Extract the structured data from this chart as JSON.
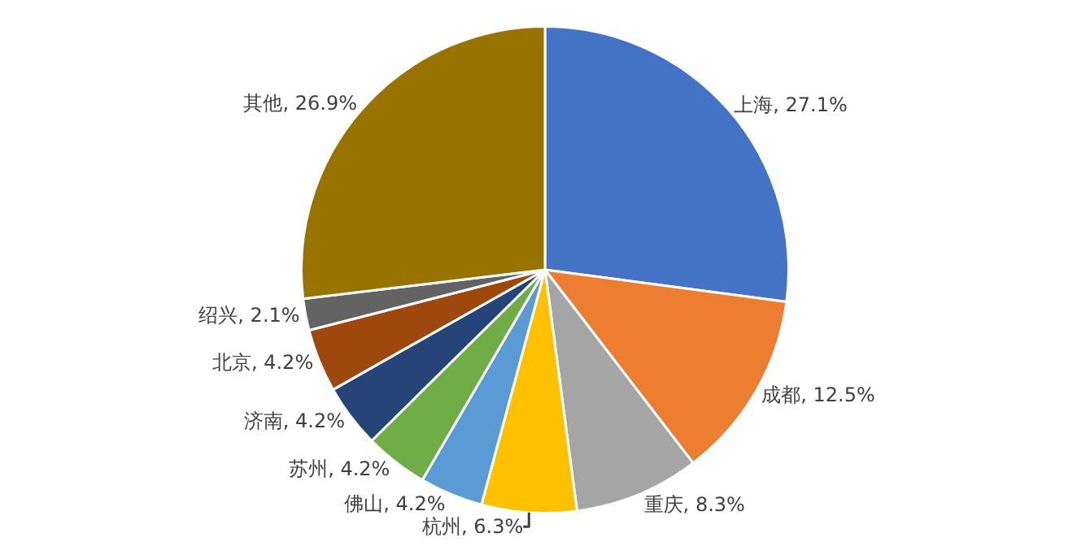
{
  "chart_data": {
    "type": "pie",
    "categories": [
      "上海",
      "成都",
      "重庆",
      "杭州",
      "佛山",
      "苏州",
      "济南",
      "北京",
      "绍兴",
      "其他"
    ],
    "values": [
      27.1,
      12.5,
      8.3,
      6.3,
      4.2,
      4.2,
      4.2,
      4.2,
      2.1,
      26.9
    ],
    "value_labels": [
      "27.1%",
      "12.5%",
      "8.3%",
      "6.3%",
      "4.2%",
      "4.2%",
      "4.2%",
      "4.2%",
      "2.1%",
      "26.9%"
    ],
    "colors": [
      "#4472c4",
      "#ed7d31",
      "#a5a5a5",
      "#ffc000",
      "#5b9bd5",
      "#70ad47",
      "#264478",
      "#9e480e",
      "#636363",
      "#997300"
    ],
    "legend": false
  }
}
